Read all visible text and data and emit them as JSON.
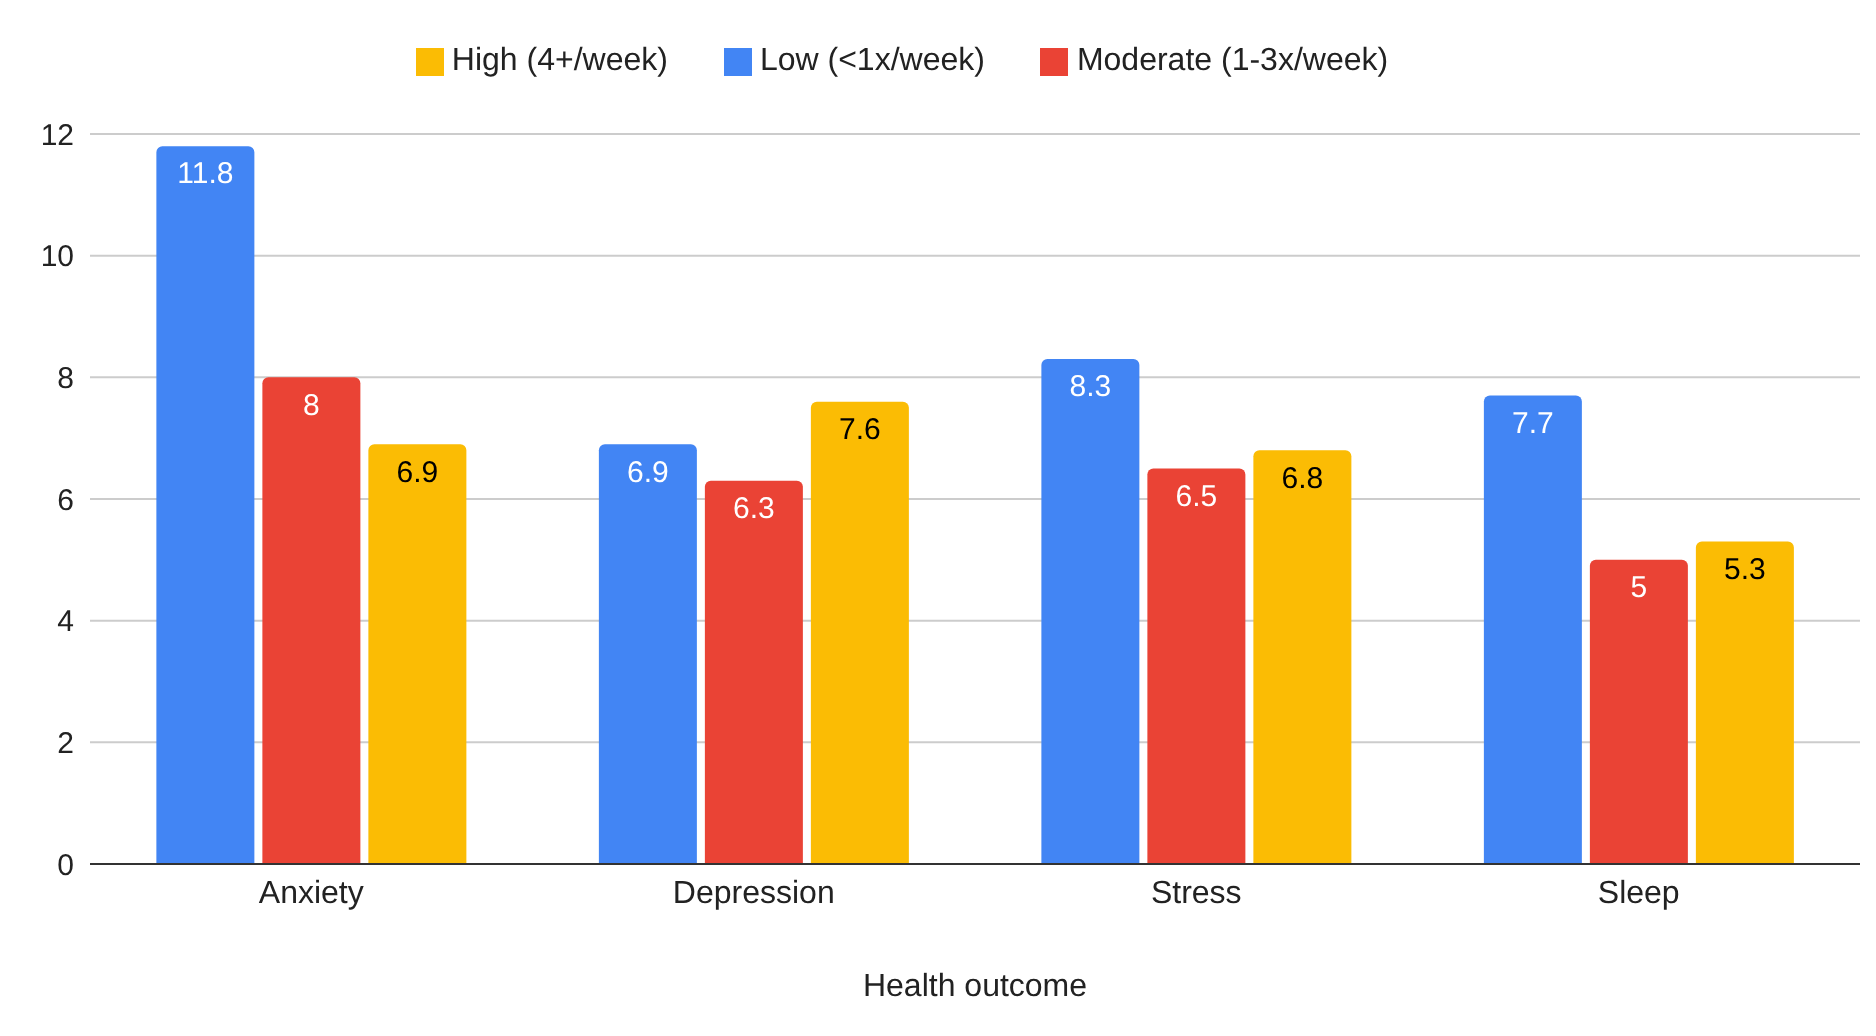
{
  "chart_data": {
    "type": "bar",
    "xlabel": "Health outcome",
    "categories": [
      "Anxiety",
      "Depression",
      "Stress",
      "Sleep"
    ],
    "series": [
      {
        "name": "Low (<1x/week)",
        "color": "#4285f4",
        "values": [
          11.8,
          6.9,
          8.3,
          7.7
        ]
      },
      {
        "name": "Moderate (1-3x/week)",
        "color": "#ea4335",
        "values": [
          8,
          6.3,
          6.5,
          5
        ]
      },
      {
        "name": "High (4+/week)",
        "color": "#fbbc04",
        "values": [
          6.9,
          7.6,
          6.8,
          5.3
        ]
      }
    ],
    "ylim": [
      0,
      12
    ],
    "yticks": [
      0,
      2,
      4,
      6,
      8,
      10,
      12
    ],
    "grid": "y",
    "legend": "top",
    "data_labels": true
  }
}
